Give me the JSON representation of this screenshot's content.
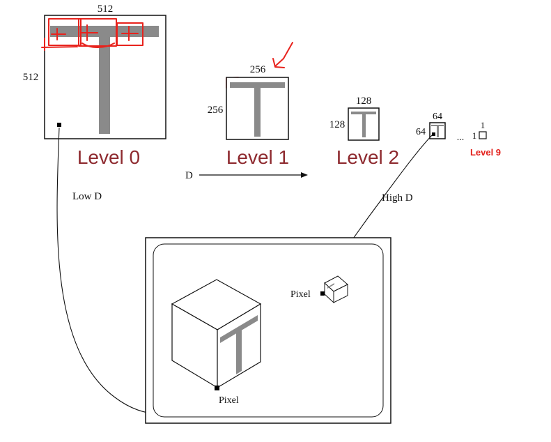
{
  "mipmap": {
    "level0": {
      "width_label": "512",
      "height_label": "512",
      "caption": "Level 0"
    },
    "level1": {
      "width_label": "256",
      "height_label": "256",
      "caption": "Level 1"
    },
    "level2": {
      "width_label": "128",
      "height_label": "128",
      "caption": "Level 2"
    },
    "level3": {
      "width_label": "64",
      "height_label": "64"
    },
    "ellipsis": "...",
    "level9": {
      "width_label": "1",
      "height_label": "1",
      "caption": "Level 9"
    }
  },
  "axis": {
    "label": "D",
    "low_label": "Low D",
    "high_label": "High D"
  },
  "scene": {
    "pixel_label_near": "Pixel",
    "pixel_label_far": "Pixel"
  },
  "colors": {
    "texture_gray": "#8a8a8a",
    "annotation_red": "#e8231d",
    "level_caption": "#8e2a2f",
    "level9_caption": "#e3201b"
  }
}
